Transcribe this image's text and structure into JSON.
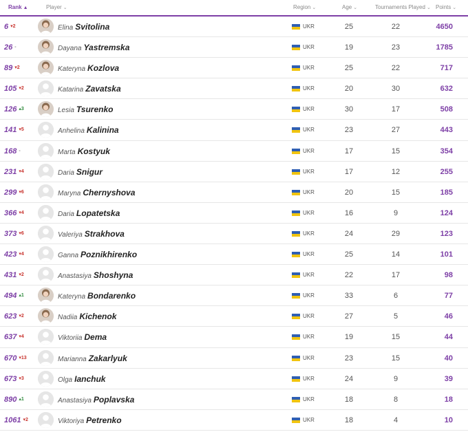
{
  "header": {
    "rank": "Rank",
    "player": "Player",
    "region": "Region",
    "age": "Age",
    "tournaments": "Tournaments Played",
    "points": "Points"
  },
  "colors": {
    "accent": "#7d3fa6",
    "down": "#c8332d",
    "up": "#2f8a3d"
  },
  "rows": [
    {
      "rank": "6",
      "move": "2",
      "dir": "down",
      "first": "Elina",
      "last": "Svitolina",
      "photo": true,
      "region": "UKR",
      "age": "25",
      "tournaments": "22",
      "points": "4650"
    },
    {
      "rank": "26",
      "move": "-",
      "dir": "same",
      "first": "Dayana",
      "last": "Yastremska",
      "photo": true,
      "region": "UKR",
      "age": "19",
      "tournaments": "23",
      "points": "1785"
    },
    {
      "rank": "89",
      "move": "2",
      "dir": "down",
      "first": "Kateryna",
      "last": "Kozlova",
      "photo": true,
      "region": "UKR",
      "age": "25",
      "tournaments": "22",
      "points": "717"
    },
    {
      "rank": "105",
      "move": "2",
      "dir": "down",
      "first": "Katarina",
      "last": "Zavatska",
      "photo": false,
      "region": "UKR",
      "age": "20",
      "tournaments": "30",
      "points": "632"
    },
    {
      "rank": "126",
      "move": "3",
      "dir": "up",
      "first": "Lesia",
      "last": "Tsurenko",
      "photo": true,
      "region": "UKR",
      "age": "30",
      "tournaments": "17",
      "points": "508"
    },
    {
      "rank": "141",
      "move": "5",
      "dir": "down",
      "first": "Anhelina",
      "last": "Kalinina",
      "photo": false,
      "region": "UKR",
      "age": "23",
      "tournaments": "27",
      "points": "443"
    },
    {
      "rank": "168",
      "move": "-",
      "dir": "same",
      "first": "Marta",
      "last": "Kostyuk",
      "photo": false,
      "region": "UKR",
      "age": "17",
      "tournaments": "15",
      "points": "354"
    },
    {
      "rank": "231",
      "move": "4",
      "dir": "down",
      "first": "Daria",
      "last": "Snigur",
      "photo": false,
      "region": "UKR",
      "age": "17",
      "tournaments": "12",
      "points": "255"
    },
    {
      "rank": "299",
      "move": "6",
      "dir": "down",
      "first": "Maryna",
      "last": "Chernyshova",
      "photo": false,
      "region": "UKR",
      "age": "20",
      "tournaments": "15",
      "points": "185"
    },
    {
      "rank": "366",
      "move": "4",
      "dir": "down",
      "first": "Daria",
      "last": "Lopatetska",
      "photo": false,
      "region": "UKR",
      "age": "16",
      "tournaments": "9",
      "points": "124"
    },
    {
      "rank": "373",
      "move": "6",
      "dir": "down",
      "first": "Valeriya",
      "last": "Strakhova",
      "photo": false,
      "region": "UKR",
      "age": "24",
      "tournaments": "29",
      "points": "123"
    },
    {
      "rank": "423",
      "move": "4",
      "dir": "down",
      "first": "Ganna",
      "last": "Poznikhirenko",
      "photo": false,
      "region": "UKR",
      "age": "25",
      "tournaments": "14",
      "points": "101"
    },
    {
      "rank": "431",
      "move": "2",
      "dir": "down",
      "first": "Anastasiya",
      "last": "Shoshyna",
      "photo": false,
      "region": "UKR",
      "age": "22",
      "tournaments": "17",
      "points": "98"
    },
    {
      "rank": "494",
      "move": "1",
      "dir": "up",
      "first": "Kateryna",
      "last": "Bondarenko",
      "photo": true,
      "region": "UKR",
      "age": "33",
      "tournaments": "6",
      "points": "77"
    },
    {
      "rank": "623",
      "move": "2",
      "dir": "down",
      "first": "Nadiia",
      "last": "Kichenok",
      "photo": true,
      "region": "UKR",
      "age": "27",
      "tournaments": "5",
      "points": "46"
    },
    {
      "rank": "637",
      "move": "4",
      "dir": "down",
      "first": "Viktoriia",
      "last": "Dema",
      "photo": false,
      "region": "UKR",
      "age": "19",
      "tournaments": "15",
      "points": "44"
    },
    {
      "rank": "670",
      "move": "13",
      "dir": "down",
      "first": "Marianna",
      "last": "Zakarlyuk",
      "photo": false,
      "region": "UKR",
      "age": "23",
      "tournaments": "15",
      "points": "40"
    },
    {
      "rank": "673",
      "move": "3",
      "dir": "down",
      "first": "Olga",
      "last": "Ianchuk",
      "photo": false,
      "region": "UKR",
      "age": "24",
      "tournaments": "9",
      "points": "39"
    },
    {
      "rank": "890",
      "move": "1",
      "dir": "up",
      "first": "Anastasiya",
      "last": "Poplavska",
      "photo": false,
      "region": "UKR",
      "age": "18",
      "tournaments": "8",
      "points": "18"
    },
    {
      "rank": "1061",
      "move": "2",
      "dir": "down",
      "first": "Viktoriya",
      "last": "Petrenko",
      "photo": false,
      "region": "UKR",
      "age": "18",
      "tournaments": "4",
      "points": "10"
    }
  ]
}
